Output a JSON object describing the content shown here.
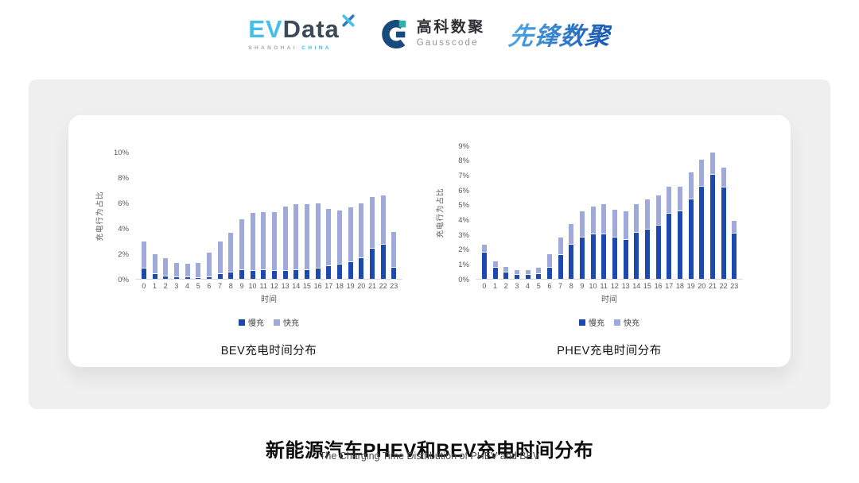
{
  "header": {
    "evdata": {
      "ev": "EV",
      "data": "Data",
      "sub_left": "SHANGHAI",
      "sub_right": "CHINA"
    },
    "gausscode": {
      "cn": "高科数聚",
      "en": "Gausscode"
    },
    "xianfeng": {
      "text": "先锋数聚"
    }
  },
  "colors": {
    "slow_charge": "#1C49B0",
    "fast_charge": "#9FA9DA",
    "band_gray": "#efeff0",
    "axis_text": "#595959",
    "evdata_blue": "#45bfe8",
    "evdata_dark": "#3d4a5a",
    "gauss_navy": "#174a7d",
    "gauss_teal": "#2cb3ab",
    "xianfeng_blue": "#2a72c8"
  },
  "chart_data": [
    {
      "type": "bar",
      "stacked": true,
      "title": "BEV充电时间分布",
      "xlabel": "时间",
      "ylabel": "充电行为占比",
      "ylim": [
        0,
        10
      ],
      "ytick_step": 2,
      "grid": false,
      "legend_position": "bottom",
      "categories": [
        "0",
        "1",
        "2",
        "3",
        "4",
        "5",
        "6",
        "7",
        "8",
        "9",
        "10",
        "11",
        "12",
        "13",
        "14",
        "15",
        "16",
        "17",
        "18",
        "19",
        "20",
        "21",
        "22",
        "23"
      ],
      "series": [
        {
          "name": "慢充",
          "color": "#1C49B0",
          "values": [
            0.8,
            0.35,
            0.2,
            0.1,
            0.1,
            0.05,
            0.15,
            0.35,
            0.5,
            0.7,
            0.65,
            0.7,
            0.6,
            0.6,
            0.7,
            0.7,
            0.8,
            1.0,
            1.1,
            1.3,
            1.6,
            2.4,
            2.7,
            0.9
          ]
        },
        {
          "name": "快充",
          "color": "#9FA9DA",
          "values": [
            2.1,
            1.5,
            1.35,
            1.1,
            1.0,
            1.15,
            1.85,
            2.5,
            3.05,
            3.95,
            4.5,
            4.5,
            4.6,
            5.0,
            5.1,
            5.1,
            5.05,
            4.45,
            4.2,
            4.25,
            4.3,
            4.0,
            3.8,
            2.7
          ]
        }
      ]
    },
    {
      "type": "bar",
      "stacked": true,
      "title": "PHEV充电时间分布",
      "xlabel": "时间",
      "ylabel": "充电行为占比",
      "ylim": [
        0,
        9
      ],
      "ytick_step": 1,
      "grid": false,
      "legend_position": "bottom",
      "categories": [
        "0",
        "1",
        "2",
        "3",
        "4",
        "5",
        "6",
        "7",
        "8",
        "9",
        "10",
        "11",
        "12",
        "13",
        "14",
        "15",
        "16",
        "17",
        "18",
        "19",
        "20",
        "21",
        "22",
        "23"
      ],
      "series": [
        {
          "name": "慢充",
          "color": "#1C49B0",
          "values": [
            1.75,
            0.75,
            0.45,
            0.25,
            0.25,
            0.3,
            0.75,
            1.6,
            2.3,
            2.8,
            3.0,
            3.0,
            2.8,
            2.65,
            3.1,
            3.3,
            3.6,
            4.4,
            4.55,
            5.35,
            6.2,
            7.0,
            6.15,
            3.05
          ]
        },
        {
          "name": "快充",
          "color": "#9FA9DA",
          "values": [
            0.5,
            0.4,
            0.3,
            0.3,
            0.3,
            0.4,
            0.85,
            1.15,
            1.35,
            1.7,
            1.8,
            2.0,
            1.8,
            1.85,
            1.9,
            2.0,
            1.95,
            1.75,
            1.6,
            1.75,
            1.8,
            1.45,
            1.3,
            0.8
          ]
        }
      ]
    }
  ],
  "footer": {
    "title": "新能源汽车PHEV和BEV充电时间分布",
    "subtitle": "The Charging Time Distribution of PHEV and BEV"
  }
}
